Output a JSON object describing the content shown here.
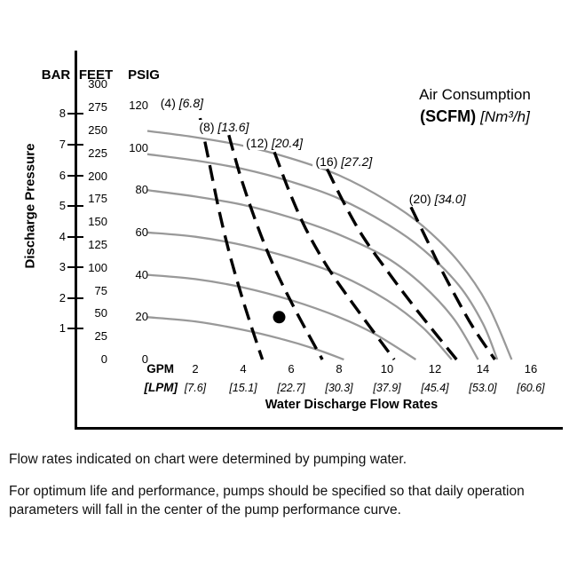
{
  "colors": {
    "pump_curve": "#999999",
    "air_curve": "#000000",
    "frame": "#000000",
    "background": "#ffffff"
  },
  "legend": {
    "line1": "Air Consumption",
    "scfm": "(SCFM)",
    "nm3h": "[Nm³/h]"
  },
  "y_axis": {
    "title": "Discharge Pressure",
    "scales": [
      {
        "name": "BAR",
        "psi_per_unit": 14.5,
        "ticks": [
          8,
          7,
          6,
          5,
          4,
          3,
          2,
          1
        ]
      },
      {
        "name": "FEET",
        "psi_per_unit": 0.4329,
        "ticks": [
          300,
          275,
          250,
          225,
          200,
          175,
          150,
          125,
          100,
          75,
          50,
          25,
          0
        ]
      },
      {
        "name": "PSIG",
        "psi_per_unit": 1,
        "ticks": [
          120,
          100,
          80,
          60,
          40,
          20,
          0
        ]
      }
    ]
  },
  "x_axis": {
    "gpm_label": "GPM",
    "lpm_label": "[LPM]",
    "title": "Water Discharge Flow Rates",
    "gpm_ticks": [
      2,
      4,
      6,
      8,
      10,
      12,
      14,
      16
    ],
    "lpm_ticks": [
      "[7.6]",
      "[15.1]",
      "[22.7]",
      "[30.3]",
      "[37.9]",
      "[45.4]",
      "[53.0]",
      "[60.6]"
    ]
  },
  "chart_data": {
    "type": "line",
    "title": "Air Consumption (SCFM) [Nm³/h]",
    "xlabel": "Water Discharge Flow Rates (GPM / [LPM])",
    "ylabel": "Discharge Pressure (BAR / FEET / PSIG)",
    "x_unit": "GPM",
    "y_unit": "PSIG",
    "xlim": [
      0,
      16.5
    ],
    "ylim": [
      0,
      130
    ],
    "grid": false,
    "legend_position": "top-right",
    "pump_curves": [
      {
        "name": "pump-performance-curve-1",
        "points": [
          [
            0,
            108
          ],
          [
            2,
            105
          ],
          [
            4,
            101
          ],
          [
            6,
            95
          ],
          [
            8,
            87
          ],
          [
            10,
            75
          ],
          [
            11.5,
            63
          ],
          [
            13,
            46
          ],
          [
            14.2,
            26
          ],
          [
            15.2,
            0
          ]
        ]
      },
      {
        "name": "pump-performance-curve-2",
        "points": [
          [
            0,
            97
          ],
          [
            2,
            94
          ],
          [
            4,
            90
          ],
          [
            6,
            84
          ],
          [
            8,
            76
          ],
          [
            10,
            64
          ],
          [
            11.5,
            52
          ],
          [
            13,
            35
          ],
          [
            14,
            17
          ],
          [
            14.6,
            0
          ]
        ]
      },
      {
        "name": "pump-performance-curve-3",
        "points": [
          [
            0,
            80
          ],
          [
            2,
            77
          ],
          [
            4,
            73
          ],
          [
            6,
            67
          ],
          [
            8,
            59
          ],
          [
            10,
            48
          ],
          [
            11.5,
            35
          ],
          [
            12.8,
            19
          ],
          [
            13.8,
            0
          ]
        ]
      },
      {
        "name": "pump-performance-curve-4",
        "points": [
          [
            0,
            60
          ],
          [
            2,
            58
          ],
          [
            4,
            54
          ],
          [
            6,
            48
          ],
          [
            8,
            40
          ],
          [
            10,
            28
          ],
          [
            11.5,
            15
          ],
          [
            12.7,
            0
          ]
        ]
      },
      {
        "name": "pump-performance-curve-5",
        "points": [
          [
            0,
            40
          ],
          [
            2,
            38
          ],
          [
            4,
            34
          ],
          [
            6,
            28
          ],
          [
            8,
            20
          ],
          [
            9.5,
            12
          ],
          [
            11.2,
            0
          ]
        ]
      },
      {
        "name": "pump-performance-curve-6",
        "points": [
          [
            0,
            20
          ],
          [
            2,
            18
          ],
          [
            4,
            14
          ],
          [
            5.5,
            10
          ],
          [
            7,
            5
          ],
          [
            8.2,
            0
          ]
        ]
      }
    ],
    "air_curves": [
      {
        "scfm": "(4)",
        "nm3h": "[6.8]",
        "label_x": 1.44,
        "label_y": 121,
        "points": [
          [
            2.2,
            114
          ],
          [
            2.6,
            92
          ],
          [
            3.0,
            70
          ],
          [
            3.5,
            47
          ],
          [
            4.1,
            24
          ],
          [
            4.8,
            0
          ]
        ]
      },
      {
        "scfm": "(8)",
        "nm3h": "[13.6]",
        "label_x": 3.2,
        "label_y": 110,
        "points": [
          [
            3.4,
            106
          ],
          [
            3.9,
            86
          ],
          [
            4.5,
            66
          ],
          [
            5.2,
            46
          ],
          [
            6.1,
            25
          ],
          [
            7.3,
            0
          ]
        ]
      },
      {
        "scfm": "(12)",
        "nm3h": "[20.4]",
        "label_x": 5.3,
        "label_y": 102.5,
        "points": [
          [
            5.3,
            98
          ],
          [
            5.9,
            80
          ],
          [
            6.6,
            62
          ],
          [
            7.5,
            44
          ],
          [
            8.6,
            26
          ],
          [
            10.3,
            0
          ]
        ]
      },
      {
        "scfm": "(16)",
        "nm3h": "[27.2]",
        "label_x": 8.2,
        "label_y": 93.5,
        "points": [
          [
            7.5,
            90
          ],
          [
            8.2,
            74
          ],
          [
            9.0,
            58
          ],
          [
            10.0,
            42
          ],
          [
            11.2,
            24
          ],
          [
            12.9,
            0
          ]
        ]
      },
      {
        "scfm": "(20)",
        "nm3h": "[34.0]",
        "label_x": 12.1,
        "label_y": 76,
        "points": [
          [
            11.0,
            72
          ],
          [
            11.6,
            58
          ],
          [
            12.2,
            44
          ],
          [
            12.9,
            29
          ],
          [
            13.6,
            15
          ],
          [
            14.5,
            0
          ]
        ]
      }
    ],
    "operating_point": {
      "gpm": 5.5,
      "psig": 20
    }
  },
  "footnotes": [
    "Flow rates indicated on chart were determined by pumping water.",
    "For optimum life and performance, pumps should be specified so that daily operation parameters will fall in the center of the pump performance curve."
  ]
}
